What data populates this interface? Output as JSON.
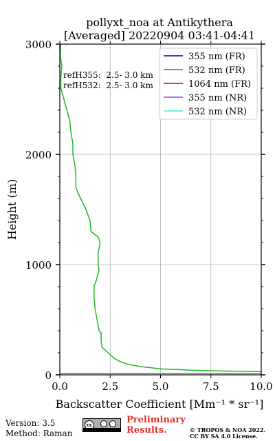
{
  "chart_data": {
    "type": "line",
    "title_line1": "pollyxt_noa at Antikythera",
    "title_line2": "[Averaged] 20220904 03:41-04:41",
    "xlabel": "Backscatter Coefficient [Mm⁻¹ * sr⁻¹]",
    "ylabel": "Height (m)",
    "xlim": [
      0,
      10
    ],
    "ylim": [
      0,
      3000
    ],
    "xticks": [
      0,
      2.5,
      5,
      7.5,
      10
    ],
    "xtick_labels": [
      "0.0",
      "2.5",
      "5.0",
      "7.5",
      "10.0"
    ],
    "yticks": [
      0,
      1000,
      2000,
      3000
    ],
    "ytick_labels": [
      "0",
      "1000",
      "2000",
      "3000"
    ],
    "grid": true,
    "legend_position": "top-right",
    "annotations": [
      "refH355:  2.5- 3.0 km",
      "refH532:  2.5- 3.0 km"
    ],
    "series": [
      {
        "name": "355 nm (FR)",
        "color": "#1f1fd6",
        "points": []
      },
      {
        "name": "532 nm (FR)",
        "color": "#22b522",
        "points": [
          [
            0.05,
            3000
          ],
          [
            0.02,
            2900
          ],
          [
            0.1,
            2800
          ],
          [
            0.05,
            2700
          ],
          [
            0.05,
            2600
          ],
          [
            0.2,
            2500
          ],
          [
            0.35,
            2400
          ],
          [
            0.5,
            2300
          ],
          [
            0.55,
            2200
          ],
          [
            0.65,
            2100
          ],
          [
            0.65,
            2000
          ],
          [
            0.75,
            1900
          ],
          [
            0.8,
            1800
          ],
          [
            0.8,
            1700
          ],
          [
            0.9,
            1650
          ],
          [
            1.3,
            1500
          ],
          [
            1.5,
            1400
          ],
          [
            1.55,
            1300
          ],
          [
            1.9,
            1250
          ],
          [
            2.0,
            1200
          ],
          [
            1.9,
            1100
          ],
          [
            1.9,
            1000
          ],
          [
            1.95,
            950
          ],
          [
            1.8,
            850
          ],
          [
            1.7,
            800
          ],
          [
            1.7,
            700
          ],
          [
            1.75,
            600
          ],
          [
            1.85,
            500
          ],
          [
            1.95,
            400
          ],
          [
            2.05,
            380
          ],
          [
            2.05,
            300
          ],
          [
            2.1,
            250
          ],
          [
            2.4,
            200
          ],
          [
            2.7,
            150
          ],
          [
            3.0,
            120
          ],
          [
            3.3,
            100
          ],
          [
            4.0,
            75
          ],
          [
            5.0,
            55
          ],
          [
            6.5,
            42
          ],
          [
            8.0,
            35
          ],
          [
            10.0,
            30
          ]
        ]
      },
      {
        "name": "1064 nm (FR)",
        "color": "#d62a2a",
        "points": []
      },
      {
        "name": "355 nm (NR)",
        "color": "#b05ee6",
        "points": []
      },
      {
        "name": "532 nm (NR)",
        "color": "#5ff0d0",
        "points": []
      }
    ]
  },
  "footer": {
    "version": "Version: 3.5",
    "method": "Method: Raman",
    "license_badge": "cc by sa",
    "preliminary_line1": "Preliminary",
    "preliminary_line2": "Results.",
    "copyright_line1": "© TROPOS & NOA 2022.",
    "copyright_line2": "CC BY SA 4.0 License."
  }
}
